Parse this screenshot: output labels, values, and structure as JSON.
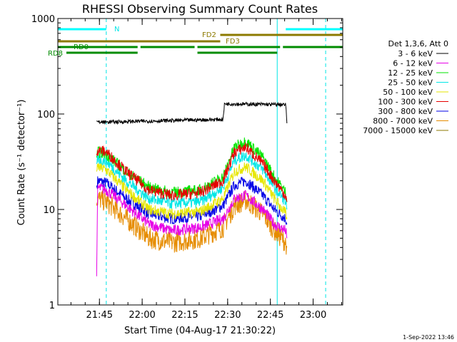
{
  "chart_data": {
    "type": "line",
    "title": "RHESSI Observing Summary Count Rates",
    "xlabel": "Start Time (04-Aug-17 21:30:22)",
    "ylabel": "Count Rate (s⁻¹ detector⁻¹)",
    "yscale": "log",
    "ylim": [
      1,
      1000
    ],
    "xlim_minutes": [
      0,
      100
    ],
    "x_ticks": [
      "21:45",
      "22:00",
      "22:15",
      "22:30",
      "22:45",
      "23:00"
    ],
    "y_ticks": [
      "1",
      "10",
      "100",
      "1000"
    ],
    "legend_title": "Det 1,3,6, Att 0",
    "legend_placement": "right",
    "footer": "1-Sep-2022 13:46",
    "background": "#ffffff",
    "series": [
      {
        "name": "3 - 6 keV",
        "color": "#000000",
        "t": [
          13.6,
          14,
          45,
          58,
          58.5,
          80,
          80.4
        ],
        "y": [
          85,
          82,
          86,
          88,
          128,
          125,
          80
        ]
      },
      {
        "name": "6 - 12 keV",
        "color": "#e600e6",
        "t": [
          13.6,
          14,
          17,
          24,
          32,
          40,
          50,
          58,
          62,
          66,
          72,
          76,
          80,
          80.4
        ],
        "y": [
          2,
          17,
          16,
          11,
          7,
          6,
          6.5,
          8,
          13,
          14,
          10,
          7,
          6,
          5
        ]
      },
      {
        "name": "12 - 25 keV",
        "color": "#00e600",
        "t": [
          13.6,
          14,
          17,
          24,
          32,
          40,
          50,
          58,
          62,
          66,
          72,
          76,
          80,
          80.4
        ],
        "y": [
          35,
          40,
          38,
          25,
          17,
          15,
          16,
          22,
          45,
          52,
          35,
          22,
          15,
          12
        ]
      },
      {
        "name": "25 - 50 keV",
        "color": "#00e6e6",
        "t": [
          13.6,
          14,
          17,
          24,
          32,
          40,
          50,
          58,
          62,
          66,
          72,
          76,
          80,
          80.4
        ],
        "y": [
          30,
          34,
          32,
          20,
          13,
          11.5,
          12,
          17,
          33,
          37,
          26,
          17,
          12,
          10
        ]
      },
      {
        "name": "50 - 100 keV",
        "color": "#e6e600",
        "t": [
          13.6,
          14,
          17,
          24,
          32,
          40,
          50,
          58,
          62,
          66,
          72,
          76,
          80,
          80.4
        ],
        "y": [
          25,
          28,
          26,
          16,
          10,
          9,
          9.5,
          13,
          25,
          28,
          20,
          13,
          9,
          8
        ]
      },
      {
        "name": "100 - 300 keV",
        "color": "#e60000",
        "t": [
          13.6,
          14,
          17,
          24,
          32,
          40,
          50,
          58,
          62,
          66,
          72,
          76,
          80,
          80.4
        ],
        "y": [
          37,
          42,
          40,
          25,
          16,
          14,
          15,
          20,
          40,
          45,
          30,
          20,
          14,
          12
        ]
      },
      {
        "name": "300 - 800 keV",
        "color": "#0000e6",
        "t": [
          13.6,
          14,
          17,
          24,
          32,
          40,
          50,
          58,
          62,
          66,
          72,
          76,
          80,
          80.4
        ],
        "y": [
          17,
          20,
          19,
          13,
          9,
          8,
          8.5,
          11,
          18,
          20,
          14,
          10,
          8,
          7
        ]
      },
      {
        "name": "800 - 7000 keV",
        "color": "#e68c00",
        "t": [
          13.6,
          14,
          17,
          24,
          32,
          40,
          50,
          58,
          62,
          66,
          72,
          76,
          80,
          80.4
        ],
        "y": [
          11,
          13,
          12,
          8,
          5,
          4.5,
          5,
          6.5,
          11,
          12.5,
          9,
          6,
          4.5,
          4
        ]
      },
      {
        "name": "7000 - 15000 keV",
        "color": "#8c7a00",
        "t": [],
        "y": []
      }
    ],
    "annotations": [
      {
        "text": "N",
        "color": "#00e6e6"
      },
      {
        "text": "FD2",
        "color": "#8c7a00"
      },
      {
        "text": "FD3",
        "color": "#8c7a00"
      },
      {
        "text": "RD0",
        "color": "#008c00"
      },
      {
        "text": "RD8",
        "color": "#008c00"
      }
    ],
    "flag_bars": {
      "night": {
        "color": "#00ffff",
        "segments": [
          [
            0,
            17
          ],
          [
            80,
            100
          ]
        ]
      },
      "fd2": {
        "color": "#8c7a00",
        "segments": [
          [
            57,
            100
          ]
        ]
      },
      "fd3": {
        "color": "#8c7a00",
        "segments": [
          [
            0,
            57
          ]
        ]
      },
      "rd0": {
        "color": "#008c00",
        "segments": [
          [
            0,
            28
          ],
          [
            29,
            48
          ],
          [
            49,
            78
          ],
          [
            79,
            100
          ]
        ]
      },
      "rd8": {
        "color": "#008c00",
        "segments": [
          [
            3,
            28
          ],
          [
            49,
            77
          ]
        ]
      }
    },
    "vlines": [
      {
        "t": 0,
        "style": "solid",
        "color": "#00e6e6"
      },
      {
        "t": 17,
        "style": "dashed",
        "color": "#00e6e6"
      },
      {
        "t": 77,
        "style": "solid",
        "color": "#00e6e6"
      },
      {
        "t": 94,
        "style": "dashed",
        "color": "#00e6e6"
      }
    ]
  }
}
